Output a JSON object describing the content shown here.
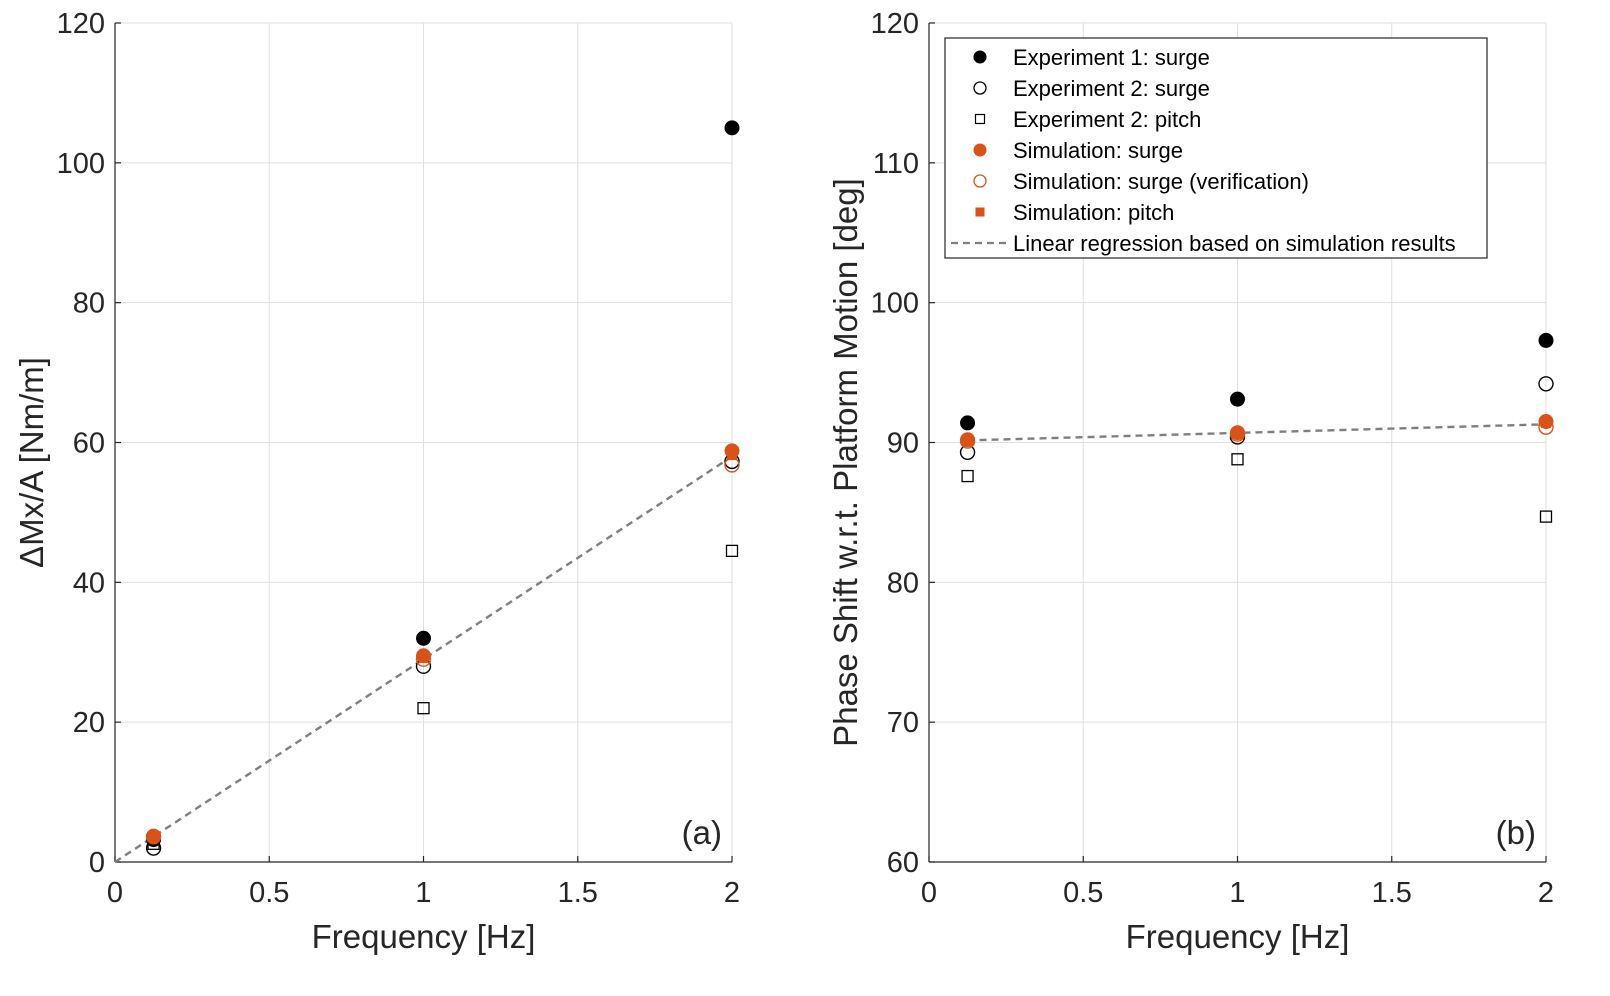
{
  "colors": {
    "experiment": "#000000",
    "simulation": "#D95319",
    "regression": "#7f7f7f"
  },
  "chart_data": [
    {
      "type": "scatter",
      "panel_label": "(a)",
      "xlabel": "Frequency [Hz]",
      "ylabel": "ΔMx/A [Nm/m]",
      "xlim": [
        0,
        2
      ],
      "ylim": [
        0,
        120
      ],
      "xticks": [
        0,
        0.5,
        1,
        1.5,
        2
      ],
      "xtick_labels": [
        "0",
        "0.5",
        "1",
        "1.5",
        "2"
      ],
      "yticks": [
        0,
        20,
        40,
        60,
        80,
        100,
        120
      ],
      "ytick_labels": [
        "0",
        "20",
        "40",
        "60",
        "80",
        "100",
        "120"
      ],
      "grid": true,
      "series": [
        {
          "name": "Experiment 1: surge",
          "marker": "filled-circle",
          "color": "#000000",
          "x": [
            0.125,
            1,
            2
          ],
          "y": [
            3.2,
            32,
            105
          ]
        },
        {
          "name": "Experiment 2: surge",
          "marker": "open-circle",
          "color": "#000000",
          "x": [
            0.125,
            1,
            2
          ],
          "y": [
            2.0,
            28,
            57.3
          ]
        },
        {
          "name": "Experiment 2: pitch",
          "marker": "open-square",
          "color": "#000000",
          "x": [
            0.125,
            1,
            2
          ],
          "y": [
            2.6,
            22,
            44.5
          ]
        },
        {
          "name": "Simulation: surge",
          "marker": "filled-circle",
          "color": "#D95319",
          "x": [
            0.125,
            1,
            2
          ],
          "y": [
            3.7,
            29.5,
            58.8
          ]
        },
        {
          "name": "Simulation: surge (verification)",
          "marker": "open-circle",
          "color": "#D95319",
          "x": [
            0.125,
            1,
            2
          ],
          "y": [
            3.6,
            29.0,
            56.8
          ]
        },
        {
          "name": "Simulation: pitch",
          "marker": "filled-square",
          "color": "#D95319",
          "x": [
            0.125,
            1,
            2
          ],
          "y": [
            3.5,
            29.2,
            58.2
          ]
        },
        {
          "name": "Linear regression based on simulation results",
          "marker": "dashed-line",
          "color": "#7f7f7f",
          "x": [
            0,
            2
          ],
          "y": [
            0,
            58.0
          ]
        }
      ]
    },
    {
      "type": "scatter",
      "panel_label": "(b)",
      "xlabel": "Frequency [Hz]",
      "ylabel": "Phase Shift w.r.t. Platform Motion [deg]",
      "xlim": [
        0,
        2
      ],
      "ylim": [
        60,
        120
      ],
      "xticks": [
        0,
        0.5,
        1,
        1.5,
        2
      ],
      "xtick_labels": [
        "0",
        "0.5",
        "1",
        "1.5",
        "2"
      ],
      "yticks": [
        60,
        70,
        80,
        90,
        100,
        110,
        120
      ],
      "ytick_labels": [
        "60",
        "70",
        "80",
        "90",
        "100",
        "110",
        "120"
      ],
      "grid": true,
      "legend_position": "top-right",
      "series": [
        {
          "name": "Experiment 1: surge",
          "marker": "filled-circle",
          "color": "#000000",
          "x": [
            0.125,
            1,
            2
          ],
          "y": [
            91.4,
            93.1,
            97.3
          ]
        },
        {
          "name": "Experiment 2: surge",
          "marker": "open-circle",
          "color": "#000000",
          "x": [
            0.125,
            1,
            2
          ],
          "y": [
            89.3,
            90.4,
            94.2
          ]
        },
        {
          "name": "Experiment 2: pitch",
          "marker": "open-square",
          "color": "#000000",
          "x": [
            0.125,
            1,
            2
          ],
          "y": [
            87.6,
            88.8,
            84.7
          ]
        },
        {
          "name": "Simulation: surge",
          "marker": "filled-circle",
          "color": "#D95319",
          "x": [
            0.125,
            1,
            2
          ],
          "y": [
            90.2,
            90.7,
            91.5
          ]
        },
        {
          "name": "Simulation: surge (verification)",
          "marker": "open-circle",
          "color": "#D95319",
          "x": [
            0.125,
            1,
            2
          ],
          "y": [
            90.1,
            90.6,
            91.1
          ]
        },
        {
          "name": "Simulation: pitch",
          "marker": "filled-square",
          "color": "#D95319",
          "x": [
            0.125,
            1,
            2
          ],
          "y": [
            90.2,
            90.7,
            91.4
          ]
        },
        {
          "name": "Linear regression based on simulation results",
          "marker": "dashed-line",
          "color": "#7f7f7f",
          "x": [
            0.125,
            2
          ],
          "y": [
            90.15,
            91.3
          ]
        }
      ]
    }
  ],
  "legend": {
    "entries": [
      {
        "label": "Experiment 1: surge",
        "marker": "filled-circle",
        "color": "#000000"
      },
      {
        "label": "Experiment 2: surge",
        "marker": "open-circle",
        "color": "#000000"
      },
      {
        "label": "Experiment 2: pitch",
        "marker": "open-square",
        "color": "#000000"
      },
      {
        "label": "Simulation: surge",
        "marker": "filled-circle",
        "color": "#D95319"
      },
      {
        "label": "Simulation: surge (verification)",
        "marker": "open-circle",
        "color": "#D95319"
      },
      {
        "label": "Simulation: pitch",
        "marker": "filled-square",
        "color": "#D95319"
      },
      {
        "label": "Linear regression based on simulation results",
        "marker": "dashed-line",
        "color": "#7f7f7f"
      }
    ]
  }
}
